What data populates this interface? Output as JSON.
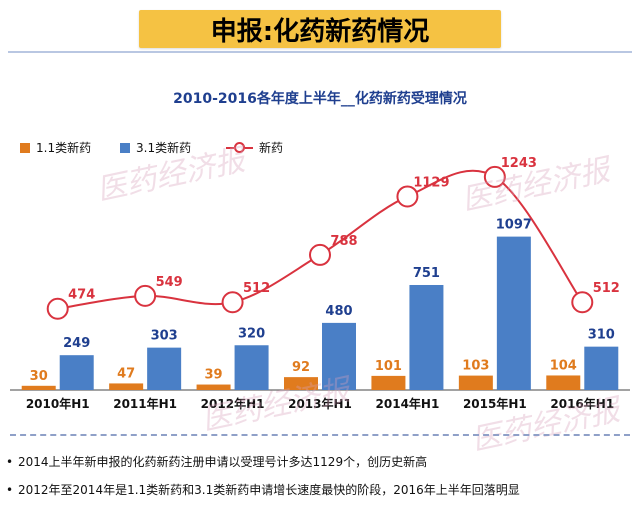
{
  "banner_title": "申报:化药新药情况",
  "watermark": "医药经济报",
  "chart_data": {
    "type": "bar+line",
    "title": "2010-2016各年度上半年__化药新药受理情况",
    "categories": [
      "2010年H1",
      "2011年H1",
      "2012年H1",
      "2013年H1",
      "2014年H1",
      "2015年H1",
      "2016年H1"
    ],
    "series": [
      {
        "name": "1.1类新药",
        "type": "bar",
        "color": "#e07b1e",
        "label_color": "#e07b1e",
        "values": [
          30,
          47,
          39,
          92,
          101,
          103,
          104
        ]
      },
      {
        "name": "3.1类新药",
        "type": "bar",
        "color": "#4a7fc6",
        "label_color": "#1f3f8f",
        "values": [
          249,
          303,
          320,
          480,
          751,
          1097,
          310
        ]
      },
      {
        "name": "新药",
        "type": "line",
        "color": "#d9333f",
        "label_color": "#d9333f",
        "values": [
          474,
          549,
          512,
          788,
          1129,
          1243,
          512
        ]
      }
    ],
    "xlabel": "",
    "ylabel": "",
    "ylim": [
      0,
      1130
    ],
    "line_ylim": [
      0,
      1400
    ],
    "legend_position": "top-left",
    "grid": false
  },
  "bullets": [
    "2014上半年新申报的化药新药注册申请以受理号计多达1129个，创历史新高",
    "2012年至2014年是1.1类新药和3.1类新药申请增长速度最快的阶段，2016年上半年回落明显"
  ]
}
